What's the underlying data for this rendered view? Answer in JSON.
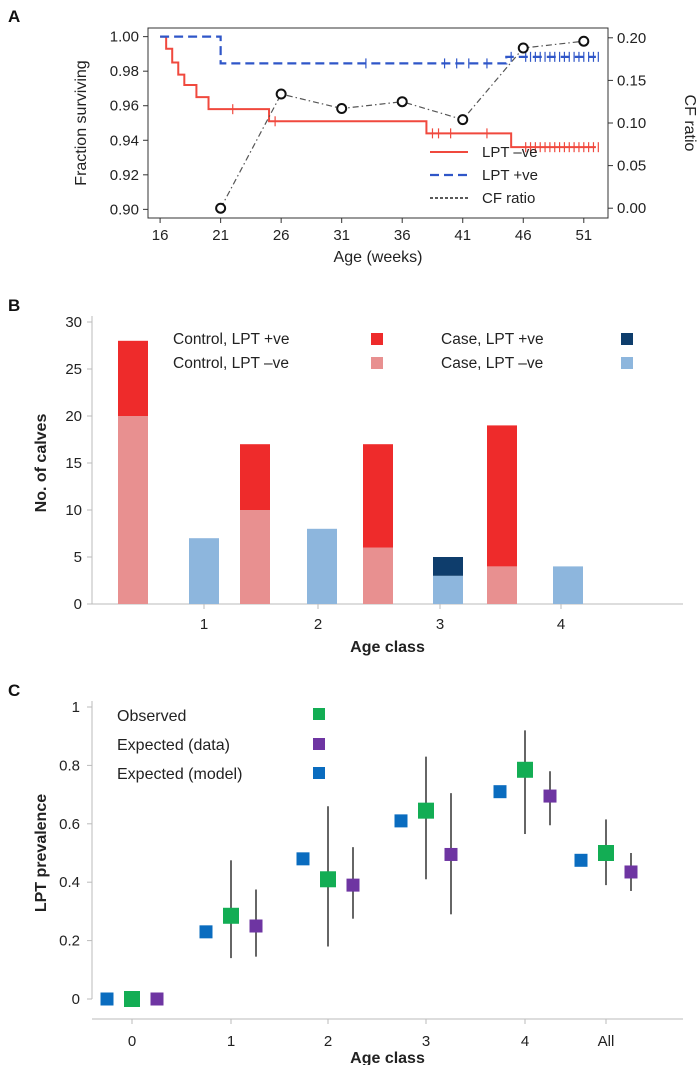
{
  "chart_data": [
    {
      "panel": "A",
      "type": "line",
      "xlabel": "Age (weeks)",
      "ylabel": "Fraction surviving",
      "y2label": "CF ratio",
      "xlim": [
        15,
        53
      ],
      "ylim": [
        0.895,
        1.005
      ],
      "y2lim": [
        -0.0115,
        0.2115
      ],
      "xticks": [
        "16",
        "21",
        "26",
        "31",
        "36",
        "41",
        "46",
        "51"
      ],
      "yticks": [
        "0.90",
        "0.92",
        "0.94",
        "0.96",
        "0.98",
        "1.00"
      ],
      "y2ticks": [
        "0.00",
        "0.05",
        "0.10",
        "0.15",
        "0.20"
      ],
      "legend_position": "bottom-right",
      "series": [
        {
          "name": "LPT –ve",
          "color": "#f0493e",
          "style": "solid-step",
          "x": [
            16,
            16.5,
            17,
            17.5,
            18,
            19,
            20,
            25,
            38,
            45,
            52
          ],
          "y": [
            1.0,
            0.993,
            0.985,
            0.978,
            0.972,
            0.965,
            0.958,
            0.951,
            0.944,
            0.936,
            0.936
          ],
          "censored_x": [
            22,
            25.5,
            38.5,
            39,
            40,
            43,
            46.2,
            46.6,
            47,
            47.4,
            47.8,
            48.2,
            48.6,
            49,
            49.4,
            49.8,
            50.2,
            50.6,
            51,
            51.4,
            51.8,
            52.2
          ]
        },
        {
          "name": "LPT +ve",
          "color": "#2f56c8",
          "style": "dashed-step",
          "x": [
            16,
            21,
            44.6,
            52
          ],
          "y": [
            1.0,
            0.9845,
            0.9883,
            0.9883
          ],
          "censored_x": [
            33,
            39.5,
            40.5,
            41.5,
            43,
            45,
            46.2,
            46.6,
            47,
            47.4,
            47.8,
            48.2,
            48.6,
            49,
            49.4,
            49.8,
            50.2,
            50.6,
            51,
            51.4,
            51.8,
            52.2
          ]
        },
        {
          "name": "CF ratio",
          "color": "#333333",
          "style": "dash-dot",
          "axis": "right",
          "x": [
            21,
            26,
            31,
            36,
            41,
            46,
            51
          ],
          "y": [
            0.0,
            0.134,
            0.117,
            0.125,
            0.104,
            0.188,
            0.196
          ]
        }
      ]
    },
    {
      "panel": "B",
      "type": "bar",
      "xlabel": "Age class",
      "ylabel": "No. of calves",
      "ylim": [
        0,
        30
      ],
      "yticks": [
        "0",
        "5",
        "10",
        "15",
        "20",
        "25",
        "30"
      ],
      "categories": [
        "1",
        "2",
        "3",
        "4"
      ],
      "stacked": true,
      "legend_position": "top",
      "legend": [
        {
          "name": "Control, LPT +ve",
          "color": "#ee2b2b"
        },
        {
          "name": "Control, LPT –ve",
          "color": "#e89090"
        },
        {
          "name": "Case, LPT +ve",
          "color": "#0e3d6c"
        },
        {
          "name": "Case, LPT –ve",
          "color": "#8db6dd"
        }
      ],
      "groups": [
        {
          "category": "1",
          "control": {
            "neg": 20,
            "pos": 8
          },
          "case": {
            "neg": 7,
            "pos": 0
          }
        },
        {
          "category": "2",
          "control": {
            "neg": 10,
            "pos": 7
          },
          "case": {
            "neg": 8,
            "pos": 0
          }
        },
        {
          "category": "3",
          "control": {
            "neg": 6,
            "pos": 11
          },
          "case": {
            "neg": 3,
            "pos": 2
          }
        },
        {
          "category": "4",
          "control": {
            "neg": 4,
            "pos": 15
          },
          "case": {
            "neg": 4,
            "pos": 0
          }
        }
      ]
    },
    {
      "panel": "C",
      "type": "scatter",
      "xlabel": "Age class",
      "ylabel": "LPT prevalence",
      "ylim": [
        0,
        1
      ],
      "yticks": [
        "0",
        "0.2",
        "0.4",
        "0.6",
        "0.8",
        "1"
      ],
      "categories": [
        "0",
        "1",
        "2",
        "3",
        "4",
        "All"
      ],
      "legend_position": "top-left",
      "series": [
        {
          "name": "Observed",
          "color": "#13ad54",
          "values": [
            0,
            0.285,
            0.41,
            0.645,
            0.785,
            0.5
          ],
          "err_low": [
            null,
            0.14,
            0.18,
            0.41,
            0.565,
            0.39
          ],
          "err_high": [
            null,
            0.475,
            0.66,
            0.83,
            0.92,
            0.615
          ]
        },
        {
          "name": "Expected (data)",
          "color": "#6e35a2",
          "values": [
            0,
            0.25,
            0.39,
            0.495,
            0.695,
            0.435
          ],
          "err_low": [
            null,
            0.145,
            0.275,
            0.29,
            0.595,
            0.37
          ],
          "err_high": [
            null,
            0.375,
            0.52,
            0.705,
            0.78,
            0.5
          ]
        },
        {
          "name": "Expected (model)",
          "color": "#0a6cbf",
          "values": [
            0,
            0.23,
            0.48,
            0.61,
            0.71,
            0.475
          ],
          "err_low": [
            null,
            null,
            null,
            null,
            null,
            null
          ],
          "err_high": [
            null,
            null,
            null,
            null,
            null,
            null
          ]
        }
      ]
    }
  ]
}
